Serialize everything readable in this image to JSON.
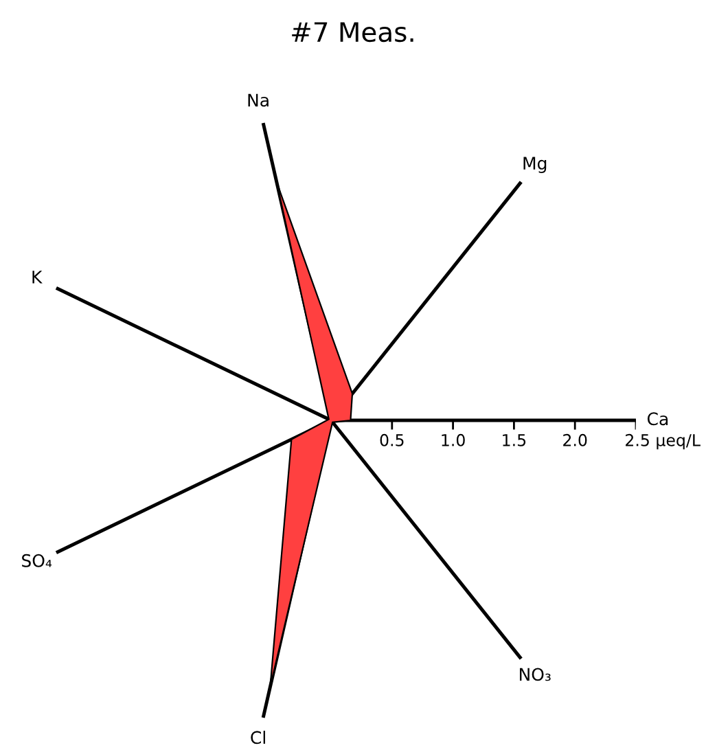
{
  "chart_data": {
    "type": "radar",
    "title": "#7 Meas.",
    "categories": [
      "Na",
      "Mg",
      "Ca",
      "NO₃",
      "Cl",
      "SO₄",
      "K"
    ],
    "series": [
      {
        "color": "#ff4040",
        "values": [
          2.0,
          0.28,
          0.16,
          0.02,
          2.24,
          0.36,
          0.02
        ]
      }
    ],
    "ylim": [
      0,
      2.5
    ],
    "yticks": [
      {
        "value": 0.5,
        "label": "0.5"
      },
      {
        "value": 1.0,
        "label": "1.0"
      },
      {
        "value": 1.5,
        "label": "1.5"
      },
      {
        "value": 2.0,
        "label": "2.0"
      },
      {
        "value": 2.5,
        "label": "2.5 µeq/L"
      }
    ]
  }
}
